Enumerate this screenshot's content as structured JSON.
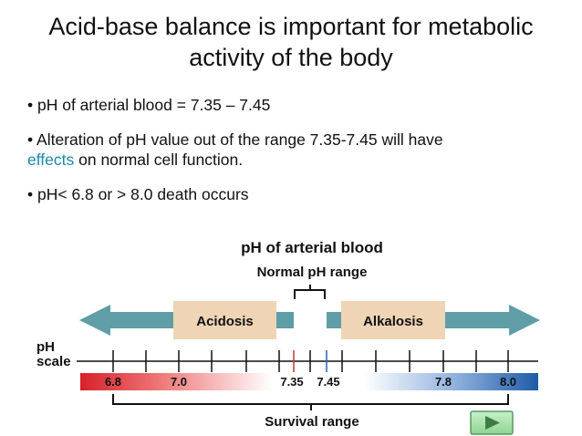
{
  "title_line1": "Acid-base balance is important for metabolic",
  "title_line2": "activity of the body",
  "bullets": {
    "b1": "• pH of arterial blood = 7.35 – 7.45",
    "b2_prefix": "• Alteration of pH value out of the range 7.35-7.45 will have",
    "b2_accent": "effects",
    "b2_suffix": " on normal cell function.",
    "b3": "• pH< 6.8 or > 8.0 death occurs"
  },
  "figure": {
    "title": "pH of arterial blood",
    "normal_range_label": "Normal pH range",
    "acidosis": "Acidosis",
    "alkalosis": "Alkalosis",
    "ph_label": "pH",
    "scale_label": "scale",
    "ticks": [
      "6.8",
      "7.0",
      "7.35",
      "7.45",
      "7.8",
      "8.0"
    ],
    "survival_label": "Survival range"
  },
  "colors": {
    "arrow": "#5f9ea6",
    "box": "#efd5b6",
    "bar_acid": "#d7212a",
    "bar_base": "#1e5ca8",
    "accent_text": "#1a8aa6",
    "next_button": "#a6e3a9"
  },
  "icons": {
    "next": "play-triangle-icon"
  }
}
